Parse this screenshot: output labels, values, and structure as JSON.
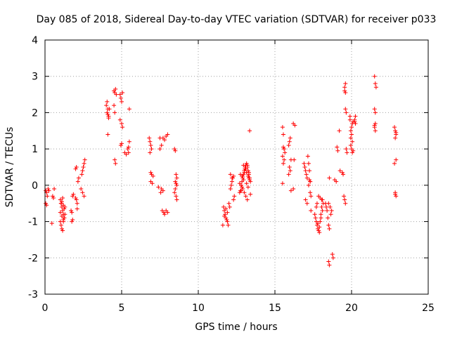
{
  "chart_data": {
    "type": "scatter",
    "title": "Day 085 of 2018, Sidereal Day-to-day VTEC variation (SDTVAR) for receiver p033",
    "xlabel": "GPS time / hours",
    "ylabel": "SDTVAR / TECUs",
    "xlim": [
      0,
      25
    ],
    "ylim": [
      -3,
      4
    ],
    "xticks": [
      "0",
      "5",
      "10",
      "15",
      "20",
      "25"
    ],
    "yticks": [
      "-3",
      "-2",
      "-1",
      "0",
      "1",
      "2",
      "3",
      "4"
    ],
    "grid": true,
    "marker": "+",
    "color": "#ff0000",
    "series": [
      {
        "name": "SDTVAR",
        "x": [
          0.05,
          0.1,
          0.15,
          0.2,
          0.25,
          0.05,
          0.1,
          0.5,
          0.55,
          0.6,
          0.45,
          1.0,
          1.05,
          1.1,
          1.15,
          1.2,
          1.25,
          1.3,
          1.0,
          1.05,
          1.1,
          1.15,
          1.2,
          1.25,
          1.3,
          1.05,
          1.1,
          1.15,
          1.2,
          1.25,
          1.0,
          1.1,
          1.2,
          1.7,
          1.75,
          1.8,
          1.85,
          1.75,
          1.8,
          2.0,
          2.05,
          2.1,
          2.15,
          2.2,
          2.0,
          2.05,
          2.1,
          2.4,
          2.45,
          2.5,
          2.55,
          2.6,
          2.35,
          2.45,
          2.55,
          4.0,
          4.05,
          4.1,
          4.15,
          4.2,
          4.05,
          4.1,
          4.15,
          4.1,
          4.5,
          4.55,
          4.6,
          4.65,
          4.55,
          4.6,
          4.5,
          4.55,
          4.9,
          4.95,
          5.0,
          5.05,
          4.9,
          5.0,
          5.05,
          4.95,
          5.0,
          5.2,
          5.3,
          5.4,
          5.45,
          5.5,
          5.45,
          5.5,
          6.8,
          6.85,
          6.9,
          6.95,
          6.85,
          6.9,
          6.95,
          6.9,
          7.0,
          7.05,
          7.4,
          7.5,
          7.6,
          7.7,
          7.8,
          7.5,
          7.6,
          7.7,
          7.55,
          7.65,
          7.75,
          7.8,
          7.9,
          8.0,
          7.9,
          8.0,
          8.45,
          8.5,
          8.55,
          8.6,
          8.45,
          8.55,
          8.6,
          8.5,
          8.55,
          8.6,
          8.5,
          11.6,
          11.65,
          11.7,
          11.75,
          11.8,
          11.85,
          11.9,
          11.95,
          11.7,
          11.8,
          11.9,
          12.0,
          12.05,
          12.1,
          12.15,
          12.2,
          12.25,
          12.3,
          12.1,
          12.2,
          12.3,
          12.35,
          12.7,
          12.75,
          12.8,
          12.85,
          12.9,
          12.95,
          13.0,
          13.05,
          13.1,
          13.15,
          13.2,
          13.25,
          13.3,
          13.35,
          13.4,
          12.8,
          12.9,
          13.0,
          13.1,
          13.2,
          13.3,
          12.85,
          12.95,
          13.05,
          13.15,
          13.25,
          13.35,
          12.7,
          12.8,
          12.9,
          13.0,
          13.1,
          13.2,
          13.3,
          13.4,
          12.75,
          12.85,
          12.95,
          13.05,
          13.15,
          13.25,
          13.35,
          15.5,
          15.55,
          15.6,
          15.65,
          15.5,
          15.6,
          15.55,
          15.5,
          15.55,
          15.6,
          15.9,
          15.95,
          16.0,
          16.05,
          15.95,
          16.0,
          15.9,
          16.05,
          16.2,
          16.3,
          16.2,
          16.25,
          16.9,
          16.95,
          17.0,
          17.05,
          17.1,
          17.15,
          17.2,
          17.25,
          17.3,
          17.35,
          17.0,
          17.1,
          17.2,
          17.3,
          17.25,
          17.3,
          17.35,
          17.6,
          17.65,
          17.7,
          17.75,
          17.8,
          17.85,
          17.9,
          17.95,
          18.0,
          18.05,
          18.1,
          18.15,
          17.7,
          17.8,
          17.9,
          18.0,
          18.1,
          17.75,
          17.85,
          17.95,
          18.05,
          18.3,
          18.35,
          18.4,
          18.45,
          18.5,
          18.55,
          18.6,
          18.65,
          18.7,
          18.75,
          18.8,
          18.5,
          18.55,
          18.5,
          18.55,
          18.9,
          19.0,
          19.05,
          19.1,
          19.2,
          19.25,
          19.4,
          19.45,
          19.5,
          19.55,
          19.6,
          19.65,
          19.7,
          19.55,
          19.6,
          19.55,
          19.6,
          19.6,
          19.65,
          19.9,
          19.95,
          20.0,
          20.05,
          20.1,
          19.9,
          19.95,
          20.0,
          20.05,
          19.95,
          20.0,
          20.05,
          20.1,
          20.2,
          20.25,
          20.2,
          20.25,
          21.5,
          21.55,
          21.6,
          21.5,
          21.55,
          21.5,
          21.55,
          21.5,
          21.55,
          22.8,
          22.85,
          22.9,
          22.85,
          22.9,
          22.8,
          22.85,
          22.9,
          22.85,
          22.9
        ],
        "y": [
          -0.15,
          -0.2,
          -0.3,
          -0.1,
          -0.15,
          -0.5,
          -0.55,
          -0.3,
          -0.35,
          -0.1,
          -1.05,
          -0.4,
          -0.5,
          -0.6,
          -0.7,
          -0.8,
          -0.9,
          -0.6,
          -1.0,
          -1.1,
          -1.2,
          -1.25,
          -1.0,
          -0.9,
          -0.8,
          -0.5,
          -0.45,
          -0.35,
          -0.55,
          -0.65,
          -0.75,
          -0.85,
          -0.95,
          -0.7,
          -0.75,
          -0.3,
          -0.25,
          -1.0,
          -0.95,
          -0.35,
          -0.4,
          -0.5,
          0.1,
          0.2,
          0.45,
          0.5,
          -0.65,
          0.3,
          0.4,
          0.5,
          0.6,
          0.7,
          -0.1,
          -0.2,
          -0.3,
          2.2,
          2.0,
          1.95,
          1.9,
          2.1,
          2.3,
          2.1,
          1.85,
          1.4,
          2.6,
          2.55,
          2.65,
          2.5,
          0.7,
          0.6,
          2.2,
          2.0,
          2.5,
          2.4,
          2.3,
          2.55,
          1.8,
          1.7,
          1.6,
          1.1,
          1.15,
          0.9,
          0.85,
          1.0,
          1.05,
          1.2,
          0.9,
          2.1,
          1.3,
          1.2,
          1.1,
          1.0,
          0.9,
          0.35,
          0.3,
          0.1,
          0.05,
          0.25,
          -0.05,
          1.0,
          1.1,
          1.3,
          1.25,
          1.3,
          -0.1,
          -0.15,
          -0.2,
          -0.7,
          -0.75,
          -0.8,
          1.35,
          1.4,
          -0.7,
          -0.75,
          1.0,
          0.95,
          0.3,
          0.2,
          -0.2,
          -0.3,
          -0.4,
          0.1,
          0.05,
          0.0,
          -0.1,
          -1.1,
          -0.6,
          -0.7,
          -0.8,
          -0.9,
          -0.95,
          -1.0,
          -1.1,
          -0.85,
          -0.65,
          -0.75,
          -0.5,
          -0.6,
          -0.1,
          -0.0,
          0.1,
          0.2,
          0.25,
          0.3,
          0.2,
          -0.4,
          -0.3,
          -0.2,
          0.3,
          0.0,
          0.1,
          0.2,
          0.3,
          0.4,
          0.5,
          0.55,
          0.6,
          0.5,
          0.4,
          0.3,
          0.2,
          0.1,
          0.0,
          -0.1,
          -0.2,
          -0.3,
          -0.4,
          0.35,
          0.25,
          0.15,
          0.45,
          0.05,
          -0.05,
          0.15,
          0.05,
          -0.15,
          0.25,
          0.35,
          0.45,
          0.55,
          0.2,
          -0.25,
          -0.15,
          -0.05,
          0.55,
          0.45,
          0.35,
          0.25,
          1.5,
          1.6,
          1.4,
          1.0,
          0.9,
          0.8,
          0.7,
          0.6,
          0.05,
          1.05,
          1.0,
          1.1,
          1.2,
          1.3,
          0.7,
          0.5,
          0.4,
          0.3,
          -0.15,
          -0.1,
          1.65,
          1.7,
          0.7,
          0.6,
          0.5,
          0.4,
          0.3,
          0.2,
          0.8,
          0.6,
          0.4,
          0.1,
          -0.3,
          -0.4,
          -0.5,
          0.0,
          0.1,
          0.15,
          -0.2,
          -0.7,
          -0.8,
          -0.9,
          -1.0,
          -1.1,
          -1.2,
          -1.25,
          -1.3,
          -1.0,
          -0.8,
          -0.6,
          -0.4,
          -0.5,
          -0.6,
          -1.05,
          -1.15,
          -0.9,
          -0.7,
          -0.5,
          -0.3,
          -0.35,
          -0.4,
          -0.5,
          -0.6,
          -0.7,
          -0.9,
          -1.1,
          -1.2,
          -0.6,
          -0.8,
          -0.7,
          -1.9,
          -2.0,
          -2.1,
          -2.2,
          -0.5,
          0.2,
          0.15,
          0.1,
          1.05,
          0.95,
          1.5,
          0.4,
          0.35,
          0.3,
          -0.3,
          -0.4,
          -0.5,
          1.0,
          0.9,
          2.6,
          2.55,
          2.7,
          2.8,
          2.1,
          2.0,
          1.9,
          1.5,
          1.6,
          1.7,
          1.75,
          1.8,
          1.3,
          1.4,
          1.2,
          1.1,
          1.0,
          0.9,
          0.95,
          1.8,
          1.9,
          1.75,
          1.7,
          3.0,
          2.8,
          2.7,
          2.1,
          2.0,
          1.6,
          1.5,
          1.65,
          1.7,
          1.6,
          1.5,
          1.4,
          1.3,
          0.7,
          0.6,
          -0.25,
          -0.3,
          -0.2,
          1.45
        ]
      }
    ]
  }
}
